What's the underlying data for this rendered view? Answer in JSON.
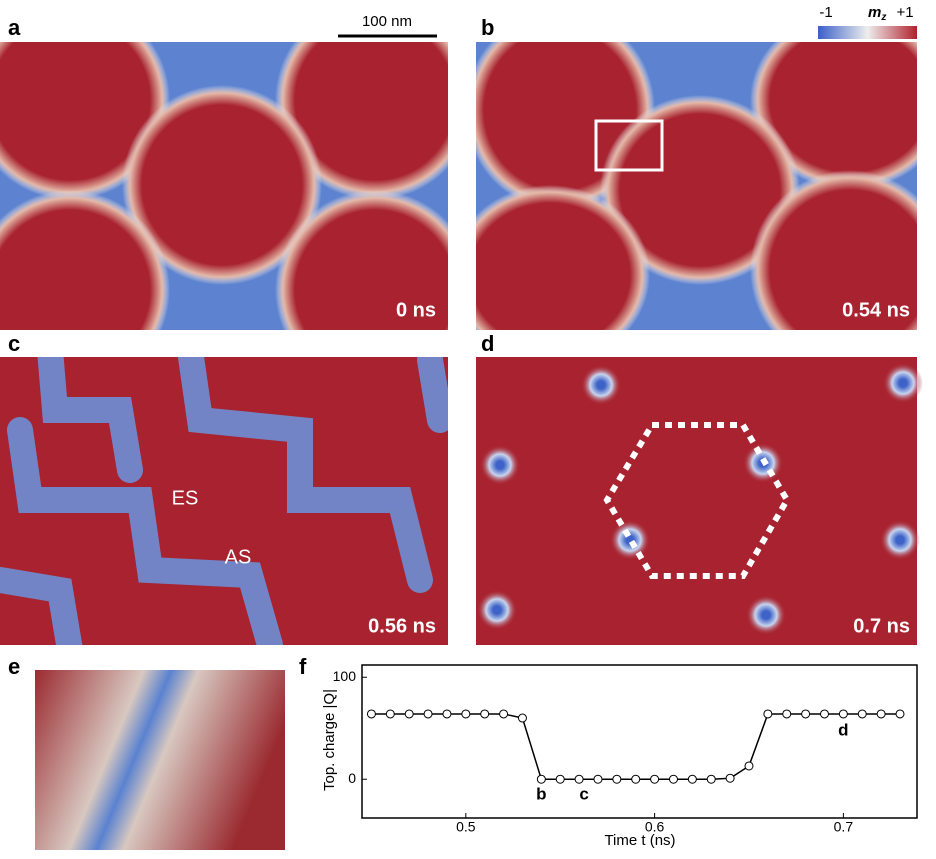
{
  "scale_bar": "100 nm",
  "colorbar": {
    "min": "-1",
    "label": "m",
    "sub": "z",
    "max": "+1"
  },
  "panels": [
    {
      "label": "a",
      "time": "0 ns"
    },
    {
      "label": "b",
      "time": "0.54 ns"
    },
    {
      "label": "c",
      "time": "0.56 ns",
      "annotations": [
        "ES",
        "AS"
      ]
    },
    {
      "label": "d",
      "time": "0.7 ns"
    },
    {
      "label": "e"
    },
    {
      "label": "f"
    }
  ],
  "chart_data": {
    "type": "line",
    "xlabel": "Time t (ns)",
    "ylabel": "Top. charge |Q|",
    "x": [
      0.45,
      0.46,
      0.47,
      0.48,
      0.49,
      0.5,
      0.51,
      0.52,
      0.53,
      0.54,
      0.55,
      0.56,
      0.57,
      0.58,
      0.59,
      0.6,
      0.61,
      0.62,
      0.63,
      0.64,
      0.65,
      0.66,
      0.67,
      0.68,
      0.69,
      0.7,
      0.71,
      0.72,
      0.73
    ],
    "values": [
      64,
      64,
      64,
      64,
      64,
      64,
      64,
      64,
      60,
      0,
      0,
      0,
      0,
      0,
      0,
      0,
      0,
      0,
      0,
      1,
      13,
      64,
      64,
      64,
      64,
      64,
      64,
      64,
      64
    ],
    "point_labels": [
      {
        "index": 9,
        "label": "b"
      },
      {
        "index": 11,
        "label": "c"
      },
      {
        "index": 25,
        "label": "d"
      }
    ],
    "xlim": [
      0.445,
      0.739
    ],
    "ylim": [
      -38,
      112
    ],
    "xticks": [
      0.5,
      0.6,
      0.7
    ],
    "yticks": [
      0,
      100
    ],
    "color": "#000000"
  }
}
